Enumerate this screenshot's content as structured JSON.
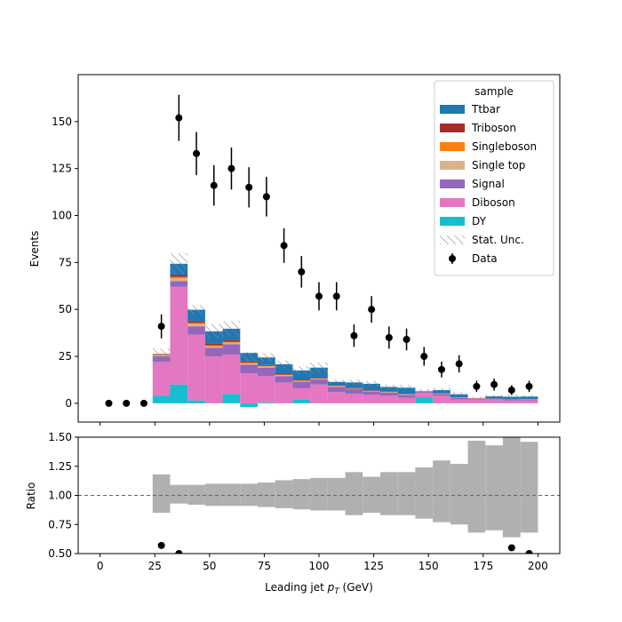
{
  "chart_data": {
    "type": "bar",
    "stacked": true,
    "bin_edges": [
      0,
      8,
      16,
      24,
      32,
      40,
      48,
      56,
      64,
      72,
      80,
      88,
      96,
      104,
      112,
      120,
      128,
      136,
      144,
      152,
      160,
      168,
      176,
      184,
      192,
      200
    ],
    "series": [
      {
        "name": "DY",
        "color": "#17becf",
        "values": [
          0,
          0,
          0,
          4,
          10,
          1.5,
          0,
          5,
          -2,
          0.5,
          0,
          2,
          0,
          0,
          0,
          0,
          0,
          0,
          3,
          0,
          0,
          0,
          0,
          0,
          0
        ]
      },
      {
        "name": "Diboson",
        "color": "#e377c2",
        "values": [
          0,
          0,
          0,
          18,
          52,
          35,
          25,
          21,
          16,
          14,
          11,
          6,
          10,
          6,
          5,
          4.5,
          4,
          3,
          2.5,
          4,
          2,
          2,
          1.7,
          1.4,
          1.6
        ]
      },
      {
        "name": "Signal",
        "color": "#9467bd",
        "values": [
          0,
          0,
          0,
          3,
          3,
          4.5,
          4.5,
          5.5,
          4.5,
          4.5,
          3.5,
          3.5,
          2.7,
          2.8,
          2.5,
          1.8,
          1.7,
          1.5,
          0.8,
          1,
          0.8,
          0.5,
          0.5,
          0.4,
          0.4
        ]
      },
      {
        "name": "Single top",
        "color": "#dbb38b",
        "values": [
          0,
          0,
          0,
          0.5,
          1.5,
          1.2,
          0.8,
          0.8,
          0.8,
          0.6,
          0.5,
          0.4,
          0.3,
          0.3,
          0.2,
          0.2,
          0.2,
          0.2,
          0.1,
          0.1,
          0.1,
          0.1,
          0.1,
          0.1,
          0.1
        ]
      },
      {
        "name": "Singleboson",
        "color": "#ff7f0e",
        "values": [
          0,
          0,
          0,
          0.3,
          0.8,
          0.6,
          0.5,
          0.4,
          0.4,
          0.3,
          0.3,
          0.2,
          0.2,
          0.2,
          0.1,
          0.1,
          0.1,
          0.1,
          0.1,
          0.1,
          0.1,
          0.1,
          0.1,
          0.1,
          0.1
        ]
      },
      {
        "name": "Triboson",
        "color": "#a62b2b",
        "values": [
          0,
          0,
          0,
          0.4,
          1,
          1,
          1,
          1,
          0.6,
          0.5,
          0.5,
          0.4,
          0.3,
          0.3,
          0.3,
          0.3,
          0.2,
          0.2,
          0.1,
          0.1,
          0.1,
          0.1,
          0.1,
          0.1,
          0.1
        ]
      },
      {
        "name": "Ttbar",
        "color": "#1f77b4",
        "values": [
          0,
          0,
          0,
          0,
          6,
          6,
          6.5,
          6,
          4.5,
          4,
          5,
          5,
          5.5,
          1.8,
          3,
          3.5,
          2.5,
          3.3,
          0,
          1.7,
          1.7,
          0,
          1.2,
          1.4,
          1.3
        ]
      }
    ],
    "stat_unc": [
      0,
      0,
      0,
      3,
      5.5,
      2.5,
      3.8,
      4,
      2.5,
      2.2,
      2,
      2.2,
      2.7,
      1.2,
      1.5,
      1.5,
      1.2,
      1.5,
      1,
      1.2,
      1,
      0.8,
      0.8,
      1.2,
      0.8
    ],
    "data": {
      "name": "Data",
      "x": [
        4,
        12,
        20,
        28,
        36,
        44,
        52,
        60,
        68,
        76,
        84,
        92,
        100,
        108,
        116,
        124,
        132,
        140,
        148,
        156,
        164,
        172,
        180,
        188,
        196
      ],
      "y": [
        0,
        0,
        0,
        41,
        152,
        133,
        116,
        125,
        115,
        110,
        84,
        70,
        57,
        57,
        36,
        50,
        35,
        34,
        25,
        18,
        21,
        9,
        10,
        7,
        9
      ],
      "yerr": [
        0,
        0,
        0,
        6.4,
        12.3,
        11.5,
        10.8,
        11.2,
        10.7,
        10.5,
        9.2,
        8.4,
        7.5,
        7.5,
        6,
        7.1,
        5.9,
        5.8,
        5,
        4.2,
        4.6,
        3,
        3.2,
        2.6,
        3
      ]
    },
    "ratio": {
      "band_low": [
        null,
        null,
        null,
        0.85,
        0.93,
        0.92,
        0.91,
        0.91,
        0.91,
        0.9,
        0.89,
        0.88,
        0.87,
        0.87,
        0.83,
        0.85,
        0.83,
        0.83,
        0.8,
        0.77,
        0.75,
        0.68,
        0.7,
        0.64,
        0.68
      ],
      "band_high": [
        null,
        null,
        null,
        1.18,
        1.09,
        1.09,
        1.1,
        1.1,
        1.1,
        1.11,
        1.13,
        1.14,
        1.15,
        1.15,
        1.2,
        1.16,
        1.2,
        1.2,
        1.24,
        1.3,
        1.27,
        1.47,
        1.43,
        1.5,
        1.46
      ],
      "points_x": [
        28,
        36,
        188,
        196
      ],
      "points_y": [
        0.57,
        0.5,
        0.55,
        0.5
      ]
    },
    "top": {
      "ylabel": "Events",
      "ylim": [
        -10,
        175
      ],
      "yticks": [
        0,
        25,
        50,
        75,
        100,
        125,
        150
      ],
      "ytick_labels": [
        "0",
        "25",
        "50",
        "75",
        "100",
        "125",
        "150"
      ]
    },
    "bottom": {
      "ylabel": "Ratio",
      "ylim": [
        0.5,
        1.5
      ],
      "yticks": [
        0.5,
        0.75,
        1.0,
        1.25,
        1.5
      ],
      "ytick_labels": [
        "0.50",
        "0.75",
        "1.00",
        "1.25",
        "1.50"
      ],
      "reference_line": 1.0
    },
    "xlim": [
      -10,
      210
    ],
    "xticks": [
      0,
      25,
      50,
      75,
      100,
      125,
      150,
      175,
      200
    ],
    "xtick_labels": [
      "0",
      "25",
      "50",
      "75",
      "100",
      "125",
      "150",
      "175",
      "200"
    ],
    "xlabel": "Leading jet  $p_T$ (GeV)",
    "legend": {
      "title": "sample",
      "placement": "top-right",
      "entries": [
        "Ttbar",
        "Triboson",
        "Singleboson",
        "Single top",
        "Signal",
        "Diboson",
        "DY",
        "Stat. Unc.",
        "Data"
      ]
    },
    "colors": {
      "stat_unc_hatch": "#888888",
      "ratio_band": "#b0b0b0",
      "data": "#000000"
    }
  }
}
